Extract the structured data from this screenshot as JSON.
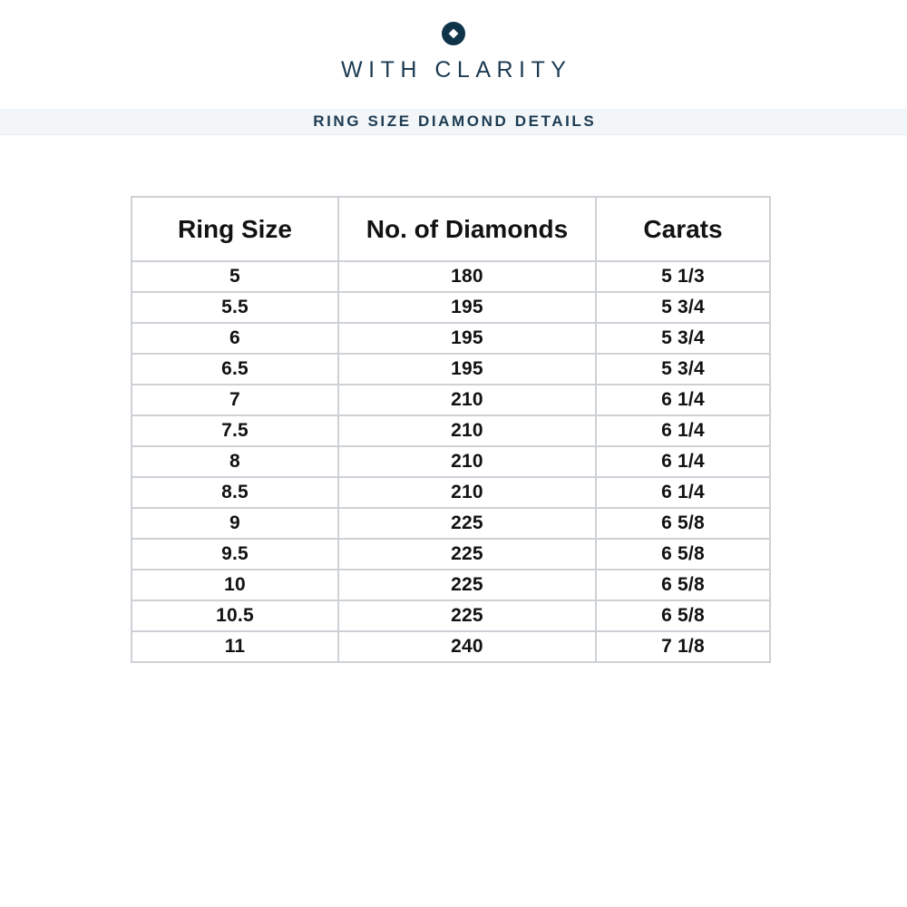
{
  "brand": {
    "name": "WITH CLARITY",
    "logo_icon": "diamond-in-circle-icon",
    "text_color": "#1d3b52",
    "logo_color": "#0f3349"
  },
  "banner": {
    "title": "RING SIZE DIAMOND DETAILS",
    "background": "#f2f6f8",
    "text_color": "#1d3b52"
  },
  "table": {
    "columns": [
      "Ring Size",
      "No. of Diamonds",
      "Carats"
    ],
    "border_color": "#cdd1d5",
    "rows": [
      {
        "ring_size": "5",
        "diamonds": "180",
        "carats": "5 1/3"
      },
      {
        "ring_size": "5.5",
        "diamonds": "195",
        "carats": "5 3/4"
      },
      {
        "ring_size": "6",
        "diamonds": "195",
        "carats": "5 3/4"
      },
      {
        "ring_size": "6.5",
        "diamonds": "195",
        "carats": "5 3/4"
      },
      {
        "ring_size": "7",
        "diamonds": "210",
        "carats": "6 1/4"
      },
      {
        "ring_size": "7.5",
        "diamonds": "210",
        "carats": "6 1/4"
      },
      {
        "ring_size": "8",
        "diamonds": "210",
        "carats": "6 1/4"
      },
      {
        "ring_size": "8.5",
        "diamonds": "210",
        "carats": "6 1/4"
      },
      {
        "ring_size": "9",
        "diamonds": "225",
        "carats": "6 5/8"
      },
      {
        "ring_size": "9.5",
        "diamonds": "225",
        "carats": "6 5/8"
      },
      {
        "ring_size": "10",
        "diamonds": "225",
        "carats": "6 5/8"
      },
      {
        "ring_size": "10.5",
        "diamonds": "225",
        "carats": "6 5/8"
      },
      {
        "ring_size": "11",
        "diamonds": "240",
        "carats": "7 1/8"
      }
    ]
  }
}
